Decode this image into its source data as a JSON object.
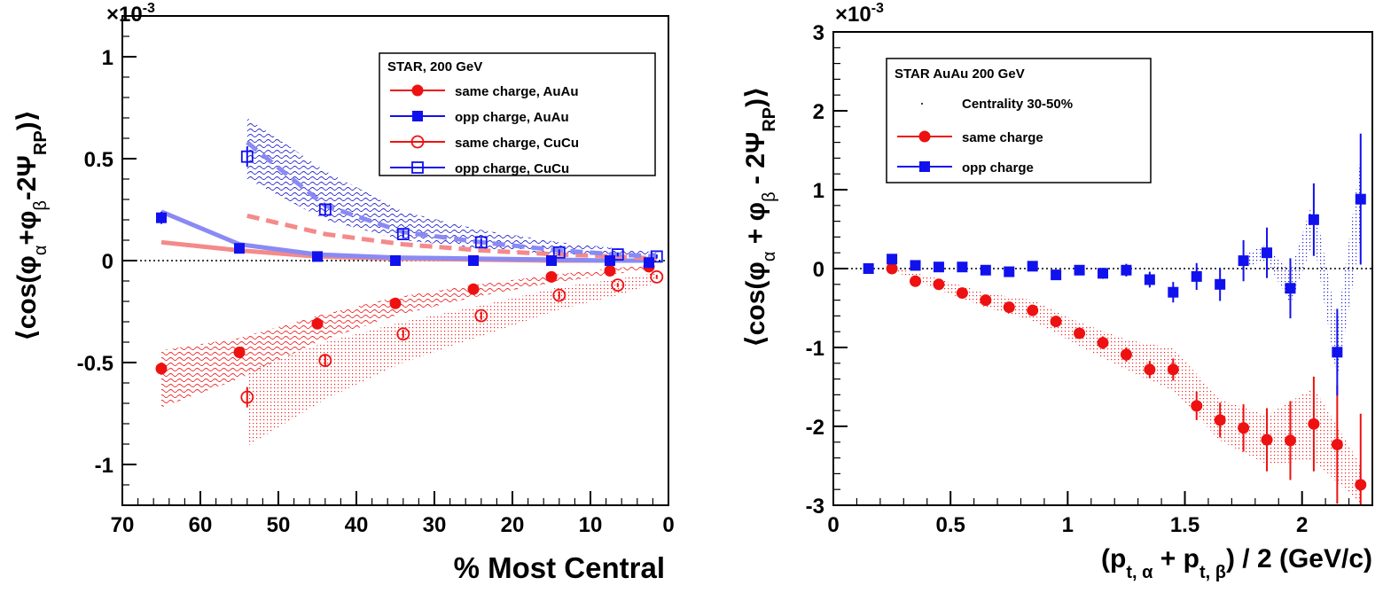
{
  "chart_data": [
    {
      "type": "scatter",
      "panel": "left",
      "exponent_label": "×10",
      "exponent_power": "-3",
      "ylabel_main": "⟨cos(φ",
      "ylabel_parts": [
        "α",
        "+φ",
        "β",
        "-2Ψ",
        "RP",
        ")⟩"
      ],
      "xlabel": "% Most Central",
      "xlim": [
        70,
        0
      ],
      "ylim": [
        -1.2,
        1.2
      ],
      "x_ticks": [
        70,
        60,
        50,
        40,
        30,
        20,
        10,
        0
      ],
      "x_tick_labels": [
        "70",
        "60",
        "50",
        "40",
        "30",
        "20",
        "10",
        "0"
      ],
      "y_ticks": [
        -1,
        -0.5,
        0,
        0.5,
        1
      ],
      "y_tick_labels": [
        "-1",
        "-0.5",
        "0",
        "0.5",
        "1"
      ],
      "legend_title": "STAR,  200 GeV",
      "legend_position": "top-right",
      "series": [
        {
          "name": "same charge, AuAu",
          "marker": "filled-circle",
          "color": "#ee1111",
          "x": [
            65,
            55,
            45,
            35,
            25,
            15,
            7.5,
            2.5
          ],
          "y": [
            -0.53,
            -0.45,
            -0.31,
            -0.21,
            -0.14,
            -0.08,
            -0.05,
            -0.03
          ],
          "err": [
            0.03,
            0.02,
            0.02,
            0.02,
            0.015,
            0.01,
            0.01,
            0.01
          ]
        },
        {
          "name": "opp charge, AuAu",
          "marker": "filled-square",
          "color": "#1111ee",
          "x": [
            65,
            55,
            45,
            35,
            25,
            15,
            7.5,
            2.5
          ],
          "y": [
            0.21,
            0.06,
            0.02,
            0.0,
            0.0,
            0.0,
            0.0,
            -0.01
          ],
          "err": [
            0.03,
            0.02,
            0.015,
            0.01,
            0.01,
            0.01,
            0.01,
            0.01
          ]
        },
        {
          "name": "same charge, CuCu",
          "marker": "open-circle",
          "color": "#ee1111",
          "x": [
            54,
            44,
            34,
            24,
            14,
            6.5,
            1.5
          ],
          "y": [
            -0.67,
            -0.49,
            -0.36,
            -0.27,
            -0.17,
            -0.12,
            -0.08
          ],
          "err": [
            0.05,
            0.03,
            0.02,
            0.02,
            0.02,
            0.01,
            0.01
          ]
        },
        {
          "name": "opp charge, CuCu",
          "marker": "open-square",
          "color": "#1111ee",
          "x": [
            54,
            44,
            34,
            24,
            14,
            6.5,
            1.5
          ],
          "y": [
            0.51,
            0.25,
            0.13,
            0.09,
            0.04,
            0.03,
            0.02
          ],
          "err": [
            0.05,
            0.03,
            0.02,
            0.02,
            0.015,
            0.01,
            0.01
          ]
        }
      ],
      "systematic_bands": [
        {
          "series": "same charge, AuAu",
          "color": "#ee2222",
          "style": "wavy",
          "x": [
            65,
            55,
            45,
            35,
            25,
            15,
            7.5,
            2.5
          ],
          "low": [
            -0.72,
            -0.58,
            -0.4,
            -0.27,
            -0.18,
            -0.11,
            -0.07,
            -0.04
          ],
          "high": [
            -0.44,
            -0.38,
            -0.27,
            -0.18,
            -0.12,
            -0.07,
            -0.04,
            -0.02
          ]
        },
        {
          "series": "same charge, CuCu",
          "color": "#ee2222",
          "style": "dotted",
          "x": [
            54,
            44,
            34,
            24,
            14,
            6.5,
            1.5
          ],
          "low": [
            -0.91,
            -0.68,
            -0.5,
            -0.37,
            -0.24,
            -0.17,
            -0.11
          ],
          "high": [
            -0.54,
            -0.4,
            -0.3,
            -0.22,
            -0.13,
            -0.09,
            -0.06
          ]
        },
        {
          "series": "opp charge, CuCu",
          "color": "#2222cc",
          "style": "wavy",
          "x": [
            54,
            44,
            34,
            24,
            14,
            6.5,
            1.5
          ],
          "low": [
            0.4,
            0.2,
            0.1,
            0.06,
            0.03,
            0.02,
            0.01
          ],
          "high": [
            0.7,
            0.44,
            0.24,
            0.15,
            0.09,
            0.06,
            0.04
          ]
        }
      ],
      "model_curves": [
        {
          "name": "same-AuAu-solid",
          "color": "#f48a8a",
          "style": "solid",
          "x": [
            65,
            55,
            45,
            35,
            25,
            15,
            7.5,
            2.5
          ],
          "y": [
            0.09,
            0.05,
            0.02,
            0.01,
            0.005,
            0.0,
            0.0,
            0.0
          ]
        },
        {
          "name": "opp-AuAu-solid",
          "color": "#8a8af4",
          "style": "solid",
          "x": [
            65,
            55,
            45,
            35,
            25,
            15,
            7.5,
            2.5
          ],
          "y": [
            0.24,
            0.08,
            0.03,
            0.015,
            0.01,
            0.005,
            0.0,
            0.0
          ]
        },
        {
          "name": "same-CuCu-dashed",
          "color": "#f48a8a",
          "style": "dashed",
          "x": [
            54,
            44,
            34,
            24,
            14,
            6.5,
            1.5
          ],
          "y": [
            0.22,
            0.13,
            0.08,
            0.05,
            0.03,
            0.02,
            0.01
          ]
        },
        {
          "name": "opp-CuCu-dashed",
          "color": "#8a8af4",
          "style": "dashed",
          "x": [
            54,
            44,
            34,
            24,
            14,
            6.5,
            1.5
          ],
          "y": [
            0.58,
            0.27,
            0.14,
            0.09,
            0.05,
            0.03,
            0.02
          ]
        }
      ]
    },
    {
      "type": "scatter",
      "panel": "right",
      "exponent_label": "×10",
      "exponent_power": "-3",
      "ylabel_main": "⟨cos(φ",
      "ylabel_parts": [
        "α",
        " + φ",
        "β",
        " - 2Ψ",
        "RP",
        ")⟩"
      ],
      "xlabel_main": "(p",
      "xlabel_parts": [
        "t, α",
        " + p",
        "t, β",
        ") / 2  (GeV/c)"
      ],
      "xlim": [
        0,
        2.3
      ],
      "ylim": [
        -3,
        3
      ],
      "x_ticks": [
        0,
        0.5,
        1,
        1.5,
        2
      ],
      "x_tick_labels": [
        "0",
        "0.5",
        "1",
        "1.5",
        "2"
      ],
      "y_ticks": [
        -3,
        -2,
        -1,
        0,
        1,
        2,
        3
      ],
      "y_tick_labels": [
        "-3",
        "-2",
        "-1",
        "0",
        "1",
        "2",
        "3"
      ],
      "legend_title": "STAR  AuAu 200 GeV",
      "legend_subtitle": "Centrality 30-50%",
      "legend_position": "top-left",
      "series": [
        {
          "name": "same charge",
          "marker": "filled-circle",
          "color": "#ee1111",
          "x": [
            0.25,
            0.35,
            0.45,
            0.55,
            0.65,
            0.75,
            0.85,
            0.95,
            1.05,
            1.15,
            1.25,
            1.35,
            1.45,
            1.55,
            1.65,
            1.75,
            1.85,
            1.95,
            2.05,
            2.15,
            2.25
          ],
          "y": [
            0.0,
            -0.16,
            -0.2,
            -0.31,
            -0.4,
            -0.49,
            -0.53,
            -0.67,
            -0.82,
            -0.94,
            -1.09,
            -1.28,
            -1.28,
            -1.74,
            -1.92,
            -2.02,
            -2.17,
            -2.18,
            -1.97,
            -2.23,
            -2.74
          ],
          "err": [
            0.02,
            0.03,
            0.03,
            0.03,
            0.04,
            0.04,
            0.05,
            0.06,
            0.07,
            0.08,
            0.09,
            0.11,
            0.14,
            0.18,
            0.22,
            0.3,
            0.4,
            0.5,
            0.6,
            0.75,
            0.9
          ]
        },
        {
          "name": "opp charge",
          "marker": "filled-square",
          "color": "#1111ee",
          "x": [
            0.15,
            0.25,
            0.35,
            0.45,
            0.55,
            0.65,
            0.75,
            0.85,
            0.95,
            1.05,
            1.15,
            1.25,
            1.35,
            1.45,
            1.55,
            1.65,
            1.75,
            1.85,
            1.95,
            2.05,
            2.15,
            2.25
          ],
          "y": [
            0.0,
            0.12,
            0.04,
            0.02,
            0.02,
            -0.02,
            -0.04,
            0.03,
            -0.08,
            -0.02,
            -0.06,
            -0.02,
            -0.14,
            -0.3,
            -0.1,
            -0.2,
            0.1,
            0.2,
            -0.25,
            0.62,
            -1.06,
            0.88
          ],
          "err": [
            0.02,
            0.02,
            0.03,
            0.03,
            0.03,
            0.04,
            0.04,
            0.05,
            0.05,
            0.06,
            0.07,
            0.08,
            0.1,
            0.13,
            0.17,
            0.21,
            0.26,
            0.32,
            0.38,
            0.46,
            0.55,
            0.83
          ]
        }
      ],
      "systematic_bands": [
        {
          "series": "same charge",
          "color": "#ee2222",
          "style": "dotted",
          "x": [
            0.25,
            0.45,
            0.65,
            0.85,
            1.05,
            1.25,
            1.45,
            1.65,
            1.85,
            2.05,
            2.25
          ],
          "low": [
            -0.02,
            -0.27,
            -0.49,
            -0.66,
            -0.98,
            -1.28,
            -1.55,
            -2.18,
            -2.48,
            -2.43,
            -2.99
          ],
          "high": [
            0.02,
            -0.13,
            -0.31,
            -0.4,
            -0.68,
            -0.9,
            -1.01,
            -1.66,
            -1.86,
            -1.51,
            -2.49
          ]
        },
        {
          "series": "opp charge",
          "color": "#2222cc",
          "style": "dotted",
          "x": [
            1.75,
            1.85,
            1.95,
            2.05,
            2.15,
            2.25
          ],
          "low": [
            0.02,
            0.1,
            -0.45,
            0.35,
            -1.4,
            0.4
          ],
          "high": [
            0.18,
            0.3,
            -0.05,
            0.9,
            -0.7,
            1.4
          ]
        }
      ]
    }
  ]
}
